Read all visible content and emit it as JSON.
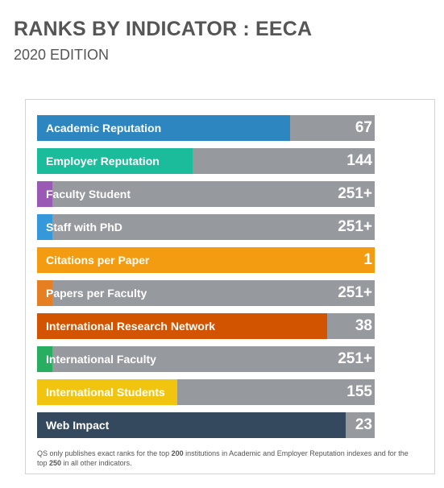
{
  "header": {
    "title": "RANKS BY INDICATOR : EECA",
    "subtitle": "2020 EDITION"
  },
  "indicators": [
    {
      "label": "Academic Reputation",
      "rank": "67",
      "fill_fraction": 0.75,
      "color": "#2e86c1"
    },
    {
      "label": "Employer Reputation",
      "rank": "144",
      "fill_fraction": 0.46,
      "color": "#1abc9c"
    },
    {
      "label": "Faculty Student",
      "rank": "251+",
      "fill_fraction": 0.045,
      "color": "#9b59b6"
    },
    {
      "label": "Staff with PhD",
      "rank": "251+",
      "fill_fraction": 0.045,
      "color": "#3498db"
    },
    {
      "label": "Citations per Paper",
      "rank": "1",
      "fill_fraction": 1.0,
      "color": "#f39c12"
    },
    {
      "label": "Papers per Faculty",
      "rank": "251+",
      "fill_fraction": 0.045,
      "color": "#e67e22"
    },
    {
      "label": "International Research Network",
      "rank": "38",
      "fill_fraction": 0.86,
      "color": "#d35400"
    },
    {
      "label": "International Faculty",
      "rank": "251+",
      "fill_fraction": 0.045,
      "color": "#27ae60"
    },
    {
      "label": "International Students",
      "rank": "155",
      "fill_fraction": 0.415,
      "color": "#f1c40f"
    },
    {
      "label": "Web Impact",
      "rank": "23",
      "fill_fraction": 0.915,
      "color": "#34495e"
    }
  ],
  "footnote": {
    "part1": "QS only publishes exact ranks for the top ",
    "num1": "200",
    "part2": " institutions in Academic and Employer Reputation indexes and for the top ",
    "num2": "250",
    "part3": " in all other indicators."
  }
}
